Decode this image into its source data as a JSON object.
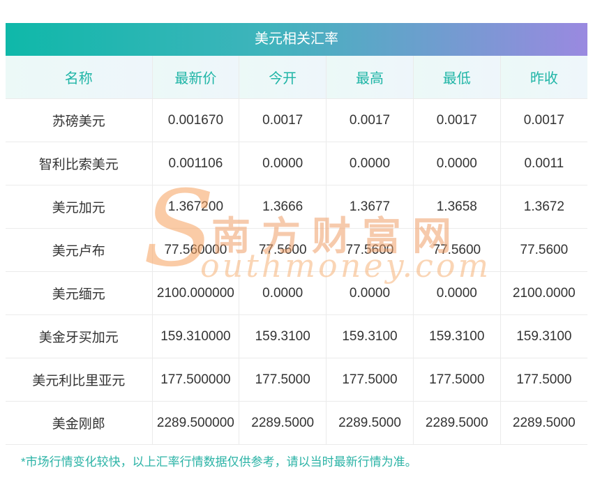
{
  "title": "美元相关汇率",
  "table": {
    "columns": [
      "名称",
      "最新价",
      "今开",
      "最高",
      "最低",
      "昨收"
    ],
    "rows": [
      {
        "name": "苏磅美元",
        "values": [
          "0.001670",
          "0.0017",
          "0.0017",
          "0.0017",
          "0.0017"
        ]
      },
      {
        "name": "智利比索美元",
        "values": [
          "0.001106",
          "0.0000",
          "0.0000",
          "0.0000",
          "0.0011"
        ]
      },
      {
        "name": "美元加元",
        "values": [
          "1.367200",
          "1.3666",
          "1.3677",
          "1.3658",
          "1.3672"
        ]
      },
      {
        "name": "美元卢布",
        "values": [
          "77.560000",
          "77.5600",
          "77.5600",
          "77.5600",
          "77.5600"
        ]
      },
      {
        "name": "美元缅元",
        "values": [
          "2100.000000",
          "0.0000",
          "0.0000",
          "0.0000",
          "2100.0000"
        ]
      },
      {
        "name": "美金牙买加元",
        "values": [
          "159.310000",
          "159.3100",
          "159.3100",
          "159.3100",
          "159.3100"
        ]
      },
      {
        "name": "美元利比里亚元",
        "values": [
          "177.500000",
          "177.5000",
          "177.5000",
          "177.5000",
          "177.5000"
        ]
      },
      {
        "name": "美金刚郎",
        "values": [
          "2289.500000",
          "2289.5000",
          "2289.5000",
          "2289.5000",
          "2289.5000"
        ]
      }
    ]
  },
  "footnote": "*市场行情变化较快，以上汇率行情数据仅供参考，请以当时最新行情为准。",
  "watermark": {
    "initial": "S",
    "cn": "南方财富网",
    "en": "outhmoney.com"
  },
  "colors": {
    "banner_gradient_left": "#0fb8a9",
    "banner_gradient_right": "#9a89e0",
    "header_text": "#1fb5a6",
    "body_text": "#333333",
    "grid_line": "#ebebeb",
    "footnote_text": "#2bb3a6",
    "watermark_orange": "#f0a060"
  }
}
